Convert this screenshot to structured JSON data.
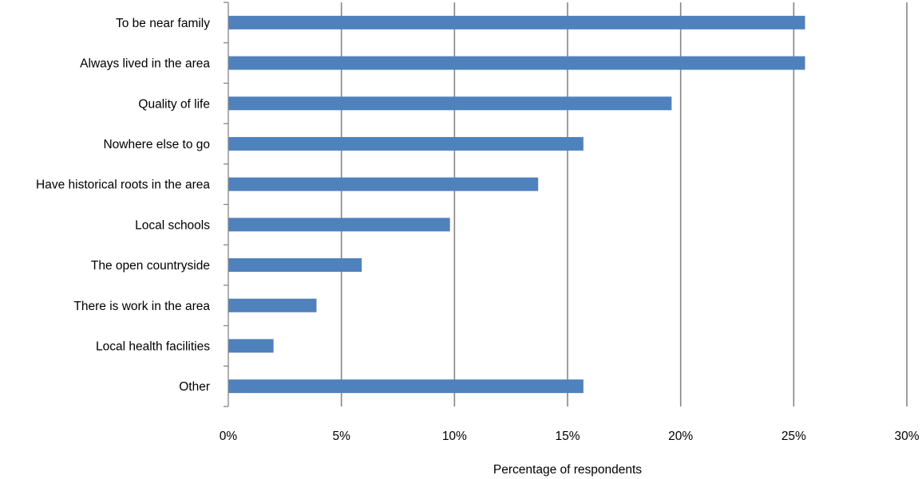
{
  "chart_data": {
    "type": "bar",
    "orientation": "horizontal",
    "categories": [
      "To be near family",
      "Always lived in the area",
      "Quality of life",
      "Nowhere else to go",
      "Have historical roots in the area",
      "Local schools",
      "The open countryside",
      "There is work in the area",
      "Local health facilities",
      "Other"
    ],
    "values": [
      25.5,
      25.5,
      19.6,
      15.7,
      13.7,
      9.8,
      5.9,
      3.9,
      2.0,
      15.7
    ],
    "value_unit": "%",
    "xlabel": "Percentage of respondents",
    "ylabel": "",
    "xlim": [
      0,
      30
    ],
    "x_ticks": [
      "0%",
      "5%",
      "10%",
      "15%",
      "20%",
      "25%",
      "30%"
    ],
    "x_tick_values": [
      0,
      5,
      10,
      15,
      20,
      25,
      30
    ],
    "grid": "vertical major gridlines",
    "legend": "none",
    "colors": {
      "bar": "#4f81bd",
      "gridline": "#868686",
      "text": "#000000"
    }
  }
}
